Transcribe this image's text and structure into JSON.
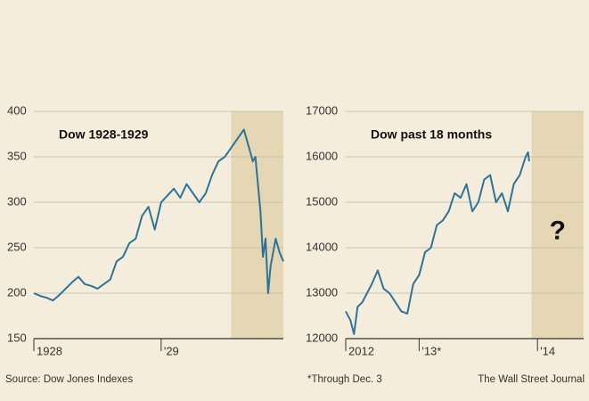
{
  "chart_data": [
    {
      "type": "line",
      "title": "Dow 1928-1929",
      "x": [
        1928.0,
        1928.05,
        1928.1,
        1928.15,
        1928.2,
        1928.25,
        1928.3,
        1928.35,
        1928.4,
        1928.45,
        1928.5,
        1928.55,
        1928.6,
        1928.65,
        1928.7,
        1928.75,
        1928.8,
        1928.85,
        1928.9,
        1928.95,
        1929.0,
        1929.1,
        1929.15,
        1929.2,
        1929.3,
        1929.35,
        1929.4,
        1929.45,
        1929.5,
        1929.6,
        1929.65,
        1929.7,
        1929.72,
        1929.74,
        1929.78,
        1929.8,
        1929.82,
        1929.84,
        1929.86,
        1929.9,
        1929.93,
        1929.96
      ],
      "series": [
        {
          "name": "Dow",
          "color": "#2b7499",
          "values": [
            200,
            197,
            195,
            192,
            198,
            205,
            212,
            218,
            210,
            208,
            205,
            210,
            215,
            235,
            240,
            255,
            260,
            285,
            295,
            270,
            300,
            315,
            305,
            320,
            300,
            310,
            330,
            345,
            350,
            370,
            380,
            355,
            345,
            350,
            290,
            240,
            260,
            200,
            230,
            260,
            245,
            235
          ]
        }
      ],
      "xlim": [
        1928,
        1929.96
      ],
      "xticks": [
        1928,
        {
          "value": 1929,
          "label": "'29"
        }
      ],
      "ylim": [
        150,
        400
      ],
      "yticks": [
        150,
        200,
        250,
        300,
        350,
        400
      ],
      "grid": true,
      "shaded_range": [
        1929.55,
        1929.96
      ]
    },
    {
      "type": "line",
      "title": "Dow past 18 months",
      "x": [
        2012.38,
        2012.42,
        2012.45,
        2012.48,
        2012.52,
        2012.56,
        2012.6,
        2012.65,
        2012.7,
        2012.75,
        2012.8,
        2012.85,
        2012.9,
        2012.95,
        2013.0,
        2013.05,
        2013.1,
        2013.15,
        2013.2,
        2013.25,
        2013.3,
        2013.35,
        2013.4,
        2013.45,
        2013.5,
        2013.55,
        2013.6,
        2013.65,
        2013.7,
        2013.75,
        2013.8,
        2013.85,
        2013.9,
        2013.92,
        2013.93
      ],
      "series": [
        {
          "name": "Dow",
          "color": "#2b7499",
          "values": [
            12600,
            12400,
            12100,
            12700,
            12800,
            13000,
            13200,
            13500,
            13100,
            13000,
            12800,
            12600,
            12550,
            13200,
            13400,
            13900,
            14000,
            14500,
            14600,
            14800,
            15200,
            15100,
            15400,
            14800,
            15000,
            15500,
            15600,
            15000,
            15200,
            14800,
            15400,
            15600,
            16000,
            16100,
            15900
          ]
        }
      ],
      "xlim": [
        2012.38,
        2014.39
      ],
      "xticks": [
        {
          "value": 2012.38,
          "label": "2012"
        },
        {
          "value": 2013,
          "label": "'13*"
        },
        {
          "value": 2014,
          "label": "'14"
        }
      ],
      "ylim": [
        12000,
        17000
      ],
      "yticks": [
        12000,
        13000,
        14000,
        15000,
        16000,
        17000
      ],
      "grid": true,
      "shaded_range": [
        2013.95,
        2014.39
      ],
      "annotation": "?"
    }
  ],
  "footer": {
    "source": "Source: Dow Jones Indexes",
    "note": "*Through Dec. 3",
    "credit": "The Wall Street Journal"
  }
}
